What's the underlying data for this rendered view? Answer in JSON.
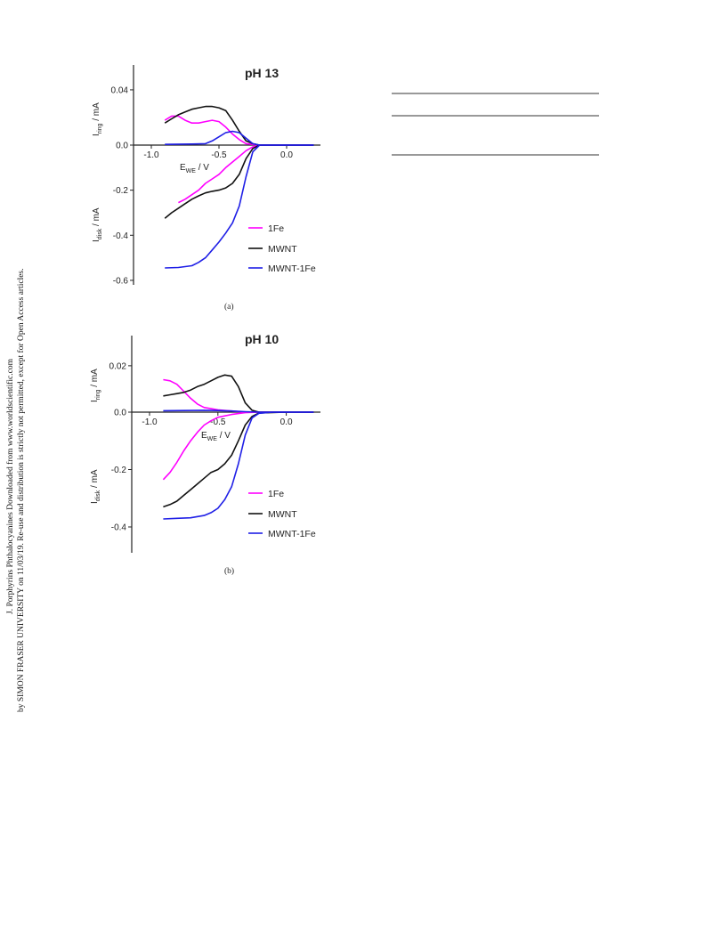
{
  "side_note": {
    "line1": "J. Porphyrins Phthalocyanines Downloaded from www.worldscientific.com",
    "line2": "by SIMON FRASER UNIVERSITY on 11/03/19. Re-use and distribution is strictly not permitted, except for Open Access articles."
  },
  "colors": {
    "1Fe": "#ff00ff",
    "MWNT": "#111111",
    "MWNT-1Fe": "#1f1fe6"
  },
  "chart_data": [
    {
      "type": "line",
      "title": "pH 13",
      "caption": "(a)",
      "xlabel": {
        "main": "E",
        "sub": "WE",
        "rest": " / V"
      },
      "ring_label": {
        "main": "I",
        "sub": "ring",
        "rest": " / mA"
      },
      "disk_label": {
        "main": "I",
        "sub": "disk",
        "rest": " / mA"
      },
      "x_ticks": [
        "-1.0",
        "-0.5",
        "0.0"
      ],
      "x_tick_values": [
        -1.0,
        -0.5,
        0.0
      ],
      "ring_ticks": [
        "0.0",
        "0.04"
      ],
      "ring_tick_values": [
        0.0,
        0.04
      ],
      "disk_ticks": [
        "-0.2",
        "-0.4",
        "-0.6"
      ],
      "disk_tick_values": [
        -0.2,
        -0.4,
        -0.6
      ],
      "xlim": [
        -1.0,
        0.25
      ],
      "ring_ylim": [
        0.0,
        0.058
      ],
      "disk_ylim": [
        -0.62,
        0.0
      ],
      "legend": [
        "1Fe",
        "MWNT",
        "MWNT-1Fe"
      ],
      "series": [
        {
          "name": "1Fe",
          "ring": [
            [
              -0.9,
              0.018
            ],
            [
              -0.85,
              0.021
            ],
            [
              -0.8,
              0.021
            ],
            [
              -0.75,
              0.018
            ],
            [
              -0.7,
              0.016
            ],
            [
              -0.65,
              0.016
            ],
            [
              -0.6,
              0.017
            ],
            [
              -0.55,
              0.018
            ],
            [
              -0.5,
              0.017
            ],
            [
              -0.45,
              0.013
            ],
            [
              -0.4,
              0.008
            ],
            [
              -0.35,
              0.004
            ],
            [
              -0.3,
              0.001
            ],
            [
              -0.25,
              0.0005
            ],
            [
              -0.2,
              0.0
            ],
            [
              0.2,
              0.0
            ]
          ],
          "disk": [
            [
              -0.8,
              -0.255
            ],
            [
              -0.75,
              -0.24
            ],
            [
              -0.7,
              -0.22
            ],
            [
              -0.65,
              -0.2
            ],
            [
              -0.6,
              -0.17
            ],
            [
              -0.55,
              -0.15
            ],
            [
              -0.5,
              -0.13
            ],
            [
              -0.45,
              -0.1
            ],
            [
              -0.4,
              -0.075
            ],
            [
              -0.35,
              -0.05
            ],
            [
              -0.3,
              -0.025
            ],
            [
              -0.25,
              -0.008
            ],
            [
              -0.2,
              0.0
            ],
            [
              0.2,
              0.0
            ]
          ]
        },
        {
          "name": "MWNT",
          "ring": [
            [
              -0.9,
              0.016
            ],
            [
              -0.85,
              0.019
            ],
            [
              -0.8,
              0.022
            ],
            [
              -0.75,
              0.024
            ],
            [
              -0.7,
              0.026
            ],
            [
              -0.65,
              0.027
            ],
            [
              -0.6,
              0.028
            ],
            [
              -0.55,
              0.028
            ],
            [
              -0.5,
              0.027
            ],
            [
              -0.45,
              0.025
            ],
            [
              -0.4,
              0.018
            ],
            [
              -0.35,
              0.01
            ],
            [
              -0.3,
              0.003
            ],
            [
              -0.25,
              0.001
            ],
            [
              -0.2,
              0.0
            ],
            [
              0.2,
              0.0
            ]
          ],
          "disk": [
            [
              -0.9,
              -0.325
            ],
            [
              -0.85,
              -0.3
            ],
            [
              -0.8,
              -0.28
            ],
            [
              -0.75,
              -0.26
            ],
            [
              -0.7,
              -0.24
            ],
            [
              -0.65,
              -0.225
            ],
            [
              -0.6,
              -0.212
            ],
            [
              -0.55,
              -0.205
            ],
            [
              -0.5,
              -0.2
            ],
            [
              -0.45,
              -0.19
            ],
            [
              -0.4,
              -0.17
            ],
            [
              -0.35,
              -0.13
            ],
            [
              -0.3,
              -0.06
            ],
            [
              -0.25,
              -0.015
            ],
            [
              -0.2,
              0.0
            ],
            [
              0.2,
              0.0
            ]
          ]
        },
        {
          "name": "MWNT-1Fe",
          "ring": [
            [
              -0.9,
              0.0005
            ],
            [
              -0.7,
              0.0008
            ],
            [
              -0.6,
              0.001
            ],
            [
              -0.55,
              0.003
            ],
            [
              -0.5,
              0.006
            ],
            [
              -0.45,
              0.009
            ],
            [
              -0.4,
              0.01
            ],
            [
              -0.35,
              0.009
            ],
            [
              -0.3,
              0.005
            ],
            [
              -0.25,
              0.001
            ],
            [
              -0.2,
              0.0
            ],
            [
              0.2,
              0.0
            ]
          ],
          "disk": [
            [
              -0.9,
              -0.545
            ],
            [
              -0.8,
              -0.543
            ],
            [
              -0.7,
              -0.535
            ],
            [
              -0.65,
              -0.52
            ],
            [
              -0.6,
              -0.5
            ],
            [
              -0.55,
              -0.465
            ],
            [
              -0.5,
              -0.43
            ],
            [
              -0.45,
              -0.39
            ],
            [
              -0.4,
              -0.345
            ],
            [
              -0.35,
              -0.27
            ],
            [
              -0.3,
              -0.14
            ],
            [
              -0.25,
              -0.03
            ],
            [
              -0.2,
              0.0
            ],
            [
              0.2,
              0.0
            ]
          ]
        }
      ]
    },
    {
      "type": "line",
      "title": "pH 10",
      "caption": "(b)",
      "xlabel": {
        "main": "E",
        "sub": "WE",
        "rest": " / V"
      },
      "ring_label": {
        "main": "I",
        "sub": "ring",
        "rest": " / mA"
      },
      "disk_label": {
        "main": "I",
        "sub": "disk",
        "rest": " / mA"
      },
      "x_ticks": [
        "-1.0",
        "-0.5",
        "0.0"
      ],
      "x_tick_values": [
        -1.0,
        -0.5,
        0.0
      ],
      "ring_ticks": [
        "0.0",
        "0.02"
      ],
      "ring_tick_values": [
        0.0,
        0.02
      ],
      "disk_ticks": [
        "-0.2",
        "-0.4"
      ],
      "disk_tick_values": [
        -0.2,
        -0.4
      ],
      "xlim": [
        -1.0,
        0.25
      ],
      "ring_ylim": [
        0.0,
        0.033
      ],
      "disk_ylim": [
        -0.49,
        0.0
      ],
      "legend": [
        "1Fe",
        "MWNT",
        "MWNT-1Fe"
      ],
      "series": [
        {
          "name": "1Fe",
          "ring": [
            [
              -0.9,
              0.014
            ],
            [
              -0.85,
              0.0135
            ],
            [
              -0.8,
              0.012
            ],
            [
              -0.75,
              0.009
            ],
            [
              -0.7,
              0.006
            ],
            [
              -0.65,
              0.0035
            ],
            [
              -0.6,
              0.002
            ],
            [
              -0.55,
              0.0015
            ],
            [
              -0.5,
              0.001
            ],
            [
              -0.4,
              0.0005
            ],
            [
              -0.3,
              0.0
            ],
            [
              0.2,
              0.0
            ]
          ],
          "disk": [
            [
              -0.9,
              -0.235
            ],
            [
              -0.85,
              -0.21
            ],
            [
              -0.8,
              -0.175
            ],
            [
              -0.75,
              -0.135
            ],
            [
              -0.7,
              -0.1
            ],
            [
              -0.65,
              -0.07
            ],
            [
              -0.6,
              -0.045
            ],
            [
              -0.55,
              -0.03
            ],
            [
              -0.5,
              -0.018
            ],
            [
              -0.4,
              -0.008
            ],
            [
              -0.3,
              -0.002
            ],
            [
              -0.2,
              0.0
            ],
            [
              0.2,
              0.0
            ]
          ]
        },
        {
          "name": "MWNT",
          "ring": [
            [
              -0.9,
              0.007
            ],
            [
              -0.85,
              0.0075
            ],
            [
              -0.8,
              0.008
            ],
            [
              -0.75,
              0.0085
            ],
            [
              -0.7,
              0.0095
            ],
            [
              -0.65,
              0.011
            ],
            [
              -0.6,
              0.012
            ],
            [
              -0.55,
              0.0135
            ],
            [
              -0.5,
              0.015
            ],
            [
              -0.45,
              0.016
            ],
            [
              -0.4,
              0.0155
            ],
            [
              -0.35,
              0.011
            ],
            [
              -0.3,
              0.004
            ],
            [
              -0.25,
              0.0008
            ],
            [
              -0.2,
              0.0
            ],
            [
              0.2,
              0.0
            ]
          ],
          "disk": [
            [
              -0.9,
              -0.33
            ],
            [
              -0.85,
              -0.322
            ],
            [
              -0.8,
              -0.31
            ],
            [
              -0.75,
              -0.29
            ],
            [
              -0.7,
              -0.27
            ],
            [
              -0.65,
              -0.25
            ],
            [
              -0.6,
              -0.23
            ],
            [
              -0.55,
              -0.21
            ],
            [
              -0.5,
              -0.2
            ],
            [
              -0.45,
              -0.18
            ],
            [
              -0.4,
              -0.15
            ],
            [
              -0.35,
              -0.1
            ],
            [
              -0.3,
              -0.045
            ],
            [
              -0.25,
              -0.015
            ],
            [
              -0.2,
              -0.003
            ],
            [
              0.0,
              0.0
            ],
            [
              0.2,
              0.0
            ]
          ]
        },
        {
          "name": "MWNT-1Fe",
          "ring": [
            [
              -0.9,
              0.0006
            ],
            [
              -0.6,
              0.0008
            ],
            [
              -0.5,
              0.0007
            ],
            [
              -0.4,
              0.0005
            ],
            [
              -0.3,
              0.0002
            ],
            [
              -0.2,
              0.0
            ],
            [
              0.2,
              0.0
            ]
          ],
          "disk": [
            [
              -0.9,
              -0.372
            ],
            [
              -0.8,
              -0.37
            ],
            [
              -0.7,
              -0.368
            ],
            [
              -0.6,
              -0.36
            ],
            [
              -0.55,
              -0.35
            ],
            [
              -0.5,
              -0.335
            ],
            [
              -0.45,
              -0.305
            ],
            [
              -0.4,
              -0.26
            ],
            [
              -0.35,
              -0.18
            ],
            [
              -0.3,
              -0.08
            ],
            [
              -0.25,
              -0.02
            ],
            [
              -0.2,
              -0.004
            ],
            [
              -0.1,
              0.0
            ],
            [
              0.2,
              0.0
            ]
          ]
        }
      ]
    }
  ]
}
